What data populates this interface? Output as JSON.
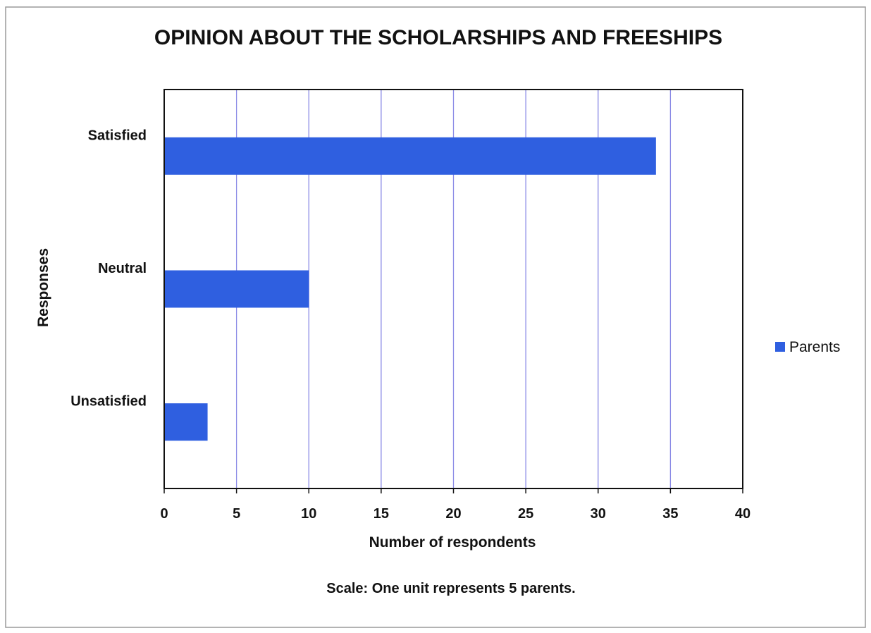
{
  "chart_data": {
    "type": "bar",
    "orientation": "horizontal",
    "title": "OPINION ABOUT THE SCHOLARSHIPS AND FREESHIPS",
    "xlabel": "Number of respondents",
    "ylabel": "Responses",
    "categories": [
      "Satisfied",
      "Neutral",
      "Unsatisfied"
    ],
    "series": [
      {
        "name": "Parents",
        "values": [
          34,
          10,
          3
        ],
        "color": "#2f5fe0"
      }
    ],
    "xlim": [
      0,
      40
    ],
    "xticks": [
      "0",
      "5",
      "10",
      "15",
      "20",
      "25",
      "30",
      "35",
      "40"
    ],
    "grid": "vertical",
    "grid_color": "#8a8ae6",
    "legend": "right",
    "note": "Scale: One unit represents 5 parents."
  }
}
